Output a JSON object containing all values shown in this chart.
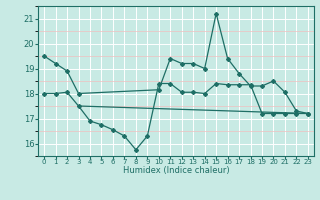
{
  "xlabel": "Humidex (Indice chaleur)",
  "bg_color": "#c8eae4",
  "grid_color": "#ffffff",
  "grid_minor_color": "#f0c0c0",
  "line_color": "#1e6e65",
  "xlim": [
    -0.5,
    23.5
  ],
  "ylim": [
    15.5,
    21.5
  ],
  "yticks": [
    16,
    17,
    18,
    19,
    20,
    21
  ],
  "xtick_labels": [
    "0",
    "1",
    "2",
    "3",
    "4",
    "5",
    "6",
    "7",
    "8",
    "9",
    "10",
    "11",
    "12",
    "13",
    "14",
    "15",
    "16",
    "17",
    "18",
    "19",
    "20",
    "21",
    "22",
    "23"
  ],
  "line1_x": [
    0,
    1,
    2,
    3,
    10,
    11,
    12,
    13,
    14,
    15,
    16,
    17,
    18,
    19,
    20,
    21,
    22,
    23
  ],
  "line1_y": [
    19.5,
    19.2,
    18.9,
    18.0,
    18.15,
    19.4,
    19.2,
    19.2,
    19.0,
    21.2,
    19.4,
    18.8,
    18.3,
    18.3,
    18.5,
    18.05,
    17.3,
    17.2
  ],
  "line2_x": [
    0,
    1,
    2,
    3,
    4,
    5,
    6,
    7,
    8,
    9,
    10,
    11,
    12,
    13,
    14,
    15,
    16,
    17,
    18,
    19,
    20,
    21,
    22,
    23
  ],
  "line2_y": [
    18.0,
    18.0,
    18.05,
    17.5,
    16.9,
    16.75,
    16.55,
    16.3,
    15.75,
    16.3,
    18.4,
    18.4,
    18.05,
    18.05,
    18.0,
    18.4,
    18.35,
    18.35,
    18.35,
    17.2,
    17.2,
    17.2,
    17.2,
    17.2
  ],
  "line3_x": [
    3,
    23
  ],
  "line3_y": [
    17.5,
    17.2
  ]
}
